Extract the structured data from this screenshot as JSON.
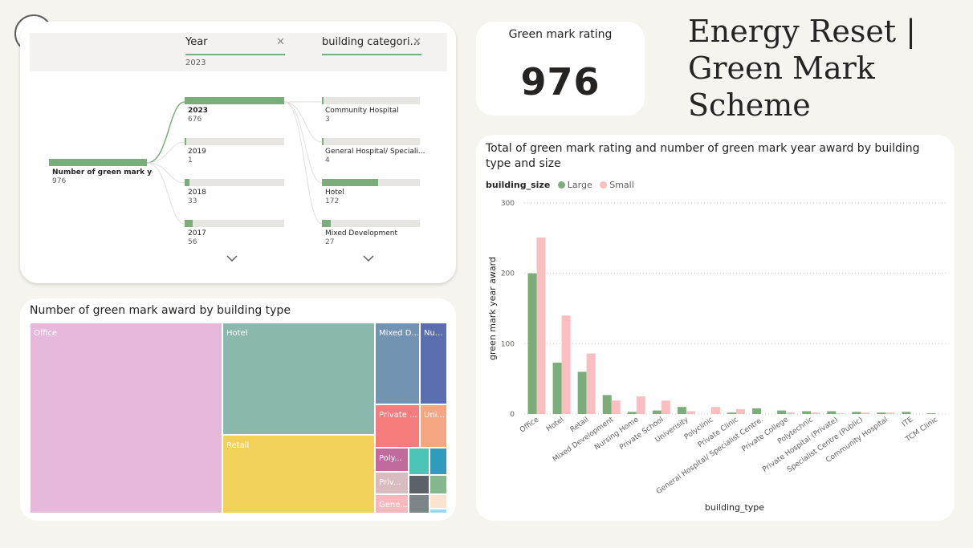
{
  "header": {
    "title": "Energy Reset | Green Mark Scheme"
  },
  "kpi": {
    "label": "Green mark rating",
    "value": "976"
  },
  "slicers": [
    {
      "label": "Year",
      "value": "2023"
    },
    {
      "label": "building categori...",
      "value": ""
    }
  ],
  "decomposition_tree": {
    "root": {
      "label": "Number of green mark ye...",
      "value": "976",
      "fraction": 1.0
    },
    "years": [
      {
        "label": "2023",
        "value": "676",
        "fraction": 1.0,
        "selected": true
      },
      {
        "label": "2019",
        "value": "1",
        "fraction": 0.0015
      },
      {
        "label": "2018",
        "value": "33",
        "fraction": 0.049
      },
      {
        "label": "2017",
        "value": "56",
        "fraction": 0.083
      }
    ],
    "categories": [
      {
        "label": "Community Hospital",
        "value": "3",
        "fraction": 0.01
      },
      {
        "label": "General Hospital/ Speciali...",
        "value": "4",
        "fraction": 0.01
      },
      {
        "label": "Hotel",
        "value": "172",
        "fraction": 0.57
      },
      {
        "label": "Mixed Development",
        "value": "27",
        "fraction": 0.09
      }
    ]
  },
  "treemap": {
    "title": "Number of green mark award by building type",
    "cells": [
      {
        "label": "Office",
        "color": "#e6b8dc"
      },
      {
        "label": "Hotel",
        "color": "#8ab8ad"
      },
      {
        "label": "Retail",
        "color": "#f2d15a"
      },
      {
        "label": "Mixed D...",
        "color": "#7393b3"
      },
      {
        "label": "Nu...",
        "color": "#5b6fb0"
      },
      {
        "label": "Private ...",
        "color": "#f47c7c"
      },
      {
        "label": "Uni...",
        "color": "#f4a582"
      },
      {
        "label": "Poly...",
        "color": "#c06a9e"
      },
      {
        "label": "",
        "color": "#4cc4b8"
      },
      {
        "label": "",
        "color": "#2f9bbd"
      },
      {
        "label": "Priv...",
        "color": "#d7bcc0"
      },
      {
        "label": "",
        "color": "#5d6268"
      },
      {
        "label": "",
        "color": "#84b88a"
      },
      {
        "label": "Gene...",
        "color": "#f7b7bd"
      },
      {
        "label": "",
        "color": "#7d8488"
      },
      {
        "label": "",
        "color": "#fbe3d0"
      },
      {
        "label": "",
        "color": "#9fd8ee"
      }
    ]
  },
  "chart_data": {
    "type": "bar",
    "title": "Total of green mark rating and number of green mark year award by building type and size",
    "legend_title": "building_size",
    "xlabel": "building_type",
    "ylabel": "green mark year award",
    "ylim": [
      0,
      300
    ],
    "yticks": [
      0,
      100,
      200,
      300
    ],
    "grid": true,
    "legend_position": "top-left",
    "categories": [
      "Office",
      "Hotel",
      "Retail",
      "Mixed Development",
      "Nursing Home",
      "Private School",
      "Univerisity",
      "Polyclinic",
      "Private Clinic",
      "General Hospital/ Specialist Centre...",
      "Private College",
      "Polytechnic",
      "Private Hospital (Private)",
      "Specialist Centre (Public)",
      "Community Hospital",
      "ITE",
      "TCM Clinic"
    ],
    "series": [
      {
        "name": "Large",
        "color": "#7aad7a",
        "values": [
          200,
          73,
          60,
          27,
          3,
          5,
          10,
          0,
          2,
          8,
          5,
          4,
          4,
          3,
          2,
          3,
          1
        ]
      },
      {
        "name": "Small",
        "color": "#f9bec0",
        "values": [
          251,
          140,
          86,
          19,
          25,
          19,
          4,
          10,
          7,
          0,
          2,
          2,
          1,
          2,
          2,
          0,
          0
        ]
      }
    ]
  }
}
